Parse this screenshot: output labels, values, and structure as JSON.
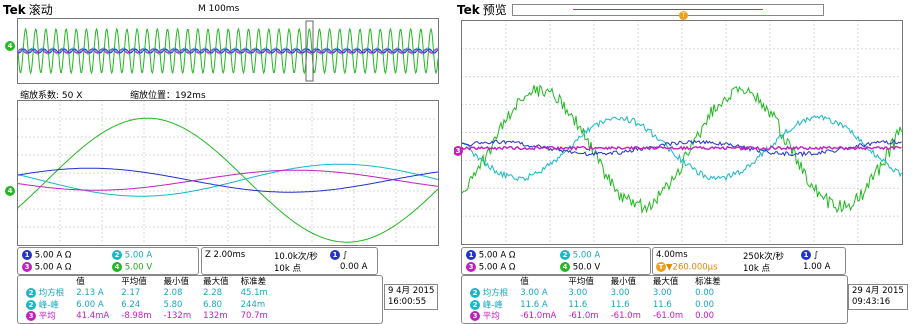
{
  "left": {
    "brand": "Tek",
    "mode": "滚动",
    "timebase": "M 100ms",
    "zoom_factor": "缩放系数: 50 X",
    "zoom_position": "缩放位置：192ms",
    "channels": [
      {
        "num": "1",
        "scale": "5.00 A",
        "unit": "Ω"
      },
      {
        "num": "2",
        "scale": "5.00 A",
        "unit": ""
      },
      {
        "num": "3",
        "scale": "5.00 A",
        "unit": "Ω"
      },
      {
        "num": "4",
        "scale": "5.00 V",
        "unit": ""
      }
    ],
    "horizontal": {
      "zoom": "Z 2.00ms",
      "rate": "10.0k次/秒",
      "points": "10k 点",
      "trigger_ch": "1",
      "trigger_slope": "∫",
      "trigger_level": "0.00 A"
    },
    "measure_headers": [
      "值",
      "平均值",
      "最小值",
      "最大值",
      "标准差"
    ],
    "measure_rows": [
      {
        "ch": "2",
        "name": "均方根",
        "values": [
          "2.13 A",
          "2.17",
          "2.08",
          "2.28",
          "45.1m"
        ]
      },
      {
        "ch": "2",
        "name": "峰-峰",
        "values": [
          "6.00 A",
          "6.24",
          "5.80",
          "6.80",
          "244m"
        ]
      },
      {
        "ch": "3",
        "name": "平均",
        "values": [
          "41.4mA",
          "-8.98m",
          "-132m",
          "132m",
          "70.7m"
        ]
      }
    ],
    "date": "9 4月  2015",
    "time": "16:00:55"
  },
  "right": {
    "brand": "Tek",
    "mode": "预览",
    "channels": [
      {
        "num": "1",
        "scale": "5.00 A",
        "unit": "Ω"
      },
      {
        "num": "2",
        "scale": "5.00 A",
        "unit": ""
      },
      {
        "num": "3",
        "scale": "5.00 A",
        "unit": "Ω"
      },
      {
        "num": "4",
        "scale": "50.0 V",
        "unit": ""
      }
    ],
    "horizontal": {
      "timebase": "4.00ms",
      "delay": "▼260.000μs",
      "rate": "250k次/秒",
      "points": "10k 点",
      "trigger_ch": "1",
      "trigger_slope": "∫",
      "trigger_level": "1.00 A"
    },
    "measure_headers": [
      "值",
      "平均值",
      "最小值",
      "最大值",
      "标准差"
    ],
    "measure_rows": [
      {
        "ch": "2",
        "name": "均方根",
        "values": [
          "3.00 A",
          "3.00",
          "3.00",
          "3.00",
          "0.00"
        ]
      },
      {
        "ch": "2",
        "name": "峰-峰",
        "values": [
          "11.6 A",
          "11.6",
          "11.6",
          "11.6",
          "0.00"
        ]
      },
      {
        "ch": "3",
        "name": "平均",
        "values": [
          "-61.0mA",
          "-61.0m",
          "-61.0m",
          "-61.0m",
          "0.00"
        ]
      }
    ],
    "date": "29 4月  2015",
    "time": "09:43:16"
  },
  "colors": {
    "ch1": "#2233c8",
    "ch2": "#18b8c8",
    "ch3": "#c020c0",
    "ch4": "#22b822"
  }
}
